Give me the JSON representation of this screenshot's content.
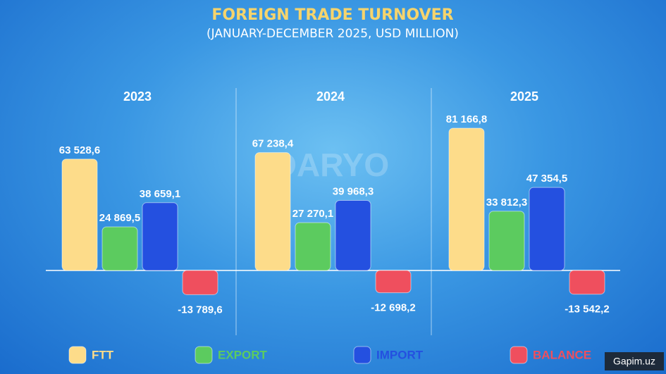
{
  "chart_data": {
    "type": "bar",
    "title": "FOREIGN TRADE TURNOVER",
    "subtitle": "(JANUARY-DECEMBER 2025, USD MILLION)",
    "categories": [
      "2023",
      "2024",
      "2025"
    ],
    "series": [
      {
        "name": "FTT",
        "color": "#fddc8a",
        "values": [
          63528.6,
          67238.4,
          81166.8
        ],
        "value_labels": [
          "63 528,6",
          "67 238,4",
          "81 166,8"
        ]
      },
      {
        "name": "EXPORT",
        "color": "#5ccb5f",
        "values": [
          24869.5,
          27270.1,
          33812.3
        ],
        "value_labels": [
          "24 869,5",
          "27 270,1",
          "33 812,3"
        ]
      },
      {
        "name": "IMPORT",
        "color": "#2450e0",
        "values": [
          38659.1,
          39968.3,
          47354.5
        ],
        "value_labels": [
          "38 659,1",
          "39 968,3",
          "47 354,5"
        ]
      },
      {
        "name": "BALANCE",
        "color": "#ef4f5e",
        "values": [
          -13789.6,
          -12698.2,
          -13542.2
        ],
        "value_labels": [
          "-13 789,6",
          "-12 698,2",
          "-13 542,2"
        ]
      }
    ],
    "watermark": "DARYO",
    "source": "Gapim.uz"
  }
}
